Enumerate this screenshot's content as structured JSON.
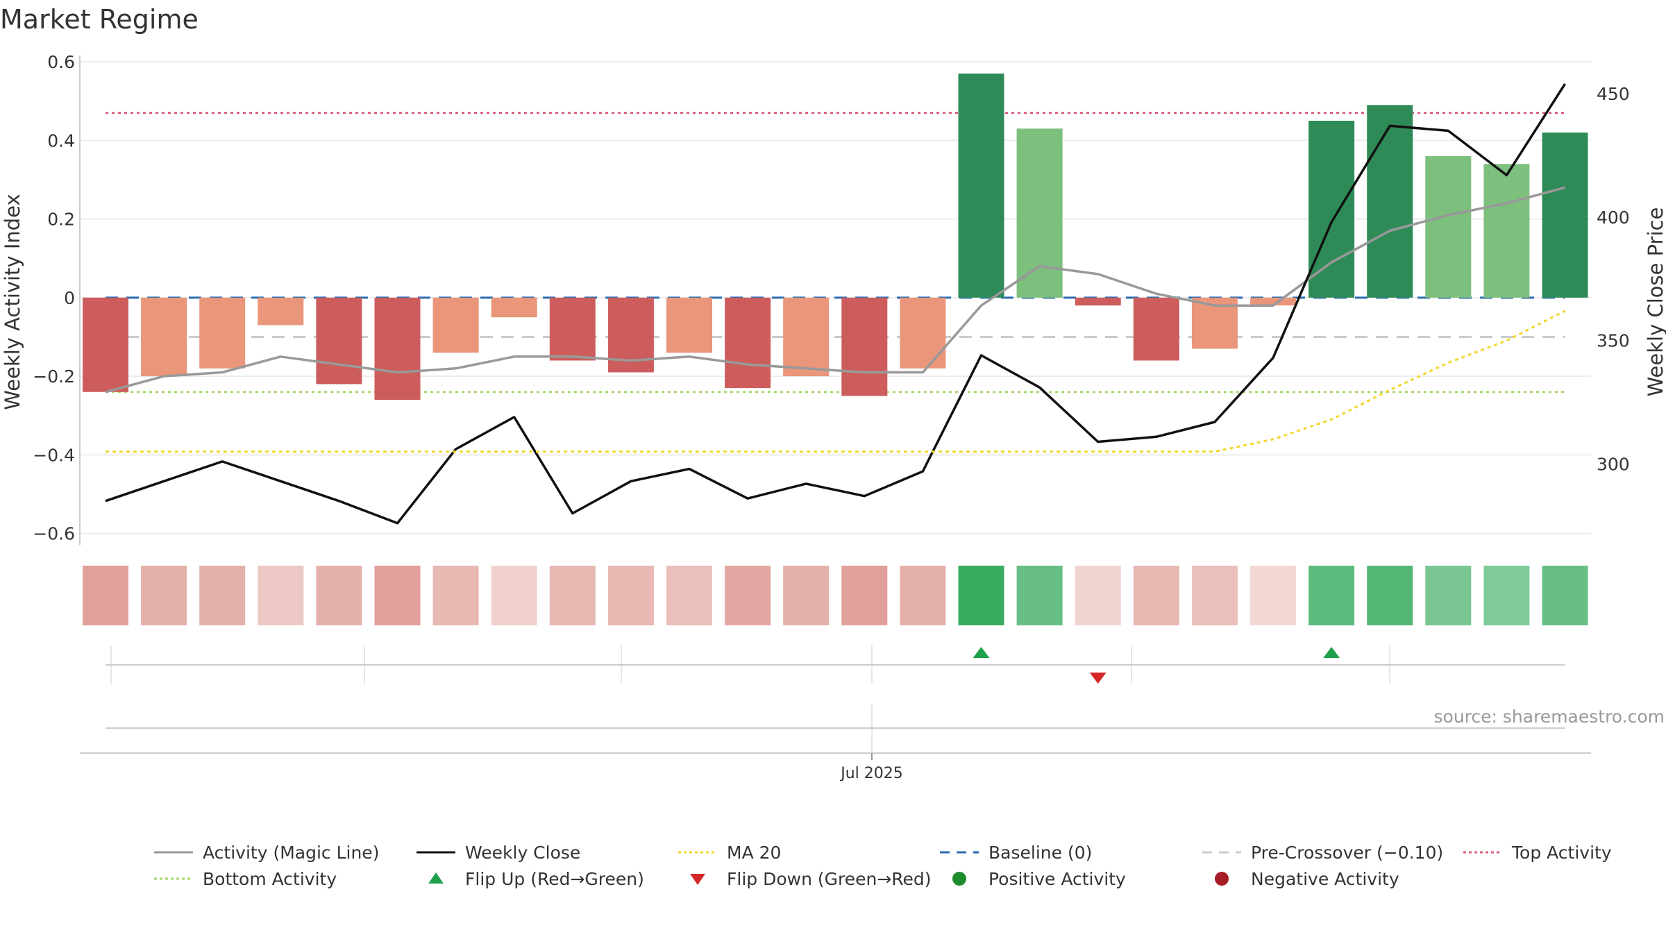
{
  "title": "Market Regime",
  "source_text": "source: sharemaestro.com",
  "colors": {
    "dark_red": "#CD5C5C",
    "light_red": "#E9967A",
    "dark_green": "#2E8B57",
    "light_green": "#7DBF7D",
    "magic_line": "#999999",
    "weekly_close": "#111111",
    "ma20": "#F2D62C",
    "baseline": "#2B6CB0",
    "pre_crossover": "#CCCCCC",
    "top_activity": "#D9607A",
    "bottom_activity": "#A6D96A",
    "flip_up": "#1FA04B",
    "flip_down": "#D62728"
  },
  "chart_data": {
    "type": "bar",
    "xlabel": "",
    "ylabel": "Weekly Activity Index",
    "y2label": "Weekly Close Price",
    "ylim": [
      -0.62,
      0.6
    ],
    "y2lim": [
      263,
      465
    ],
    "yticks": [
      "0.6",
      "0.4",
      "0.2",
      "0",
      "−0.2",
      "−0.4",
      "−0.6"
    ],
    "y2ticks": [
      "450",
      "400",
      "350",
      "300"
    ],
    "date_tick_label": "Jul 2025",
    "grid": true,
    "legend_placement": "bottom",
    "weeks": 26,
    "activity_index": [
      -0.24,
      -0.2,
      -0.18,
      -0.07,
      -0.22,
      -0.26,
      -0.14,
      -0.05,
      -0.16,
      -0.19,
      -0.14,
      -0.23,
      -0.2,
      -0.25,
      -0.18,
      0.57,
      0.43,
      -0.02,
      -0.16,
      -0.13,
      -0.02,
      0.45,
      0.49,
      0.36,
      0.34,
      0.42
    ],
    "bar_shade": [
      "dark",
      "light",
      "light",
      "light",
      "dark",
      "dark",
      "light",
      "light",
      "dark",
      "dark",
      "light",
      "dark",
      "light",
      "dark",
      "light",
      "dark",
      "light",
      "dark",
      "dark",
      "light",
      "light",
      "dark",
      "dark",
      "light",
      "light",
      "dark"
    ],
    "heat_strip": [
      -0.45,
      -0.35,
      -0.35,
      -0.2,
      -0.35,
      -0.45,
      -0.3,
      -0.15,
      -0.3,
      -0.3,
      -0.25,
      -0.4,
      -0.35,
      -0.45,
      -0.35,
      0.95,
      0.7,
      -0.12,
      -0.3,
      -0.25,
      -0.1,
      0.75,
      0.8,
      0.6,
      0.55,
      0.7
    ],
    "series": [
      {
        "name": "Activity (Magic Line)",
        "axis": "left",
        "style": "line",
        "values": [
          -0.24,
          -0.2,
          -0.19,
          -0.15,
          -0.17,
          -0.19,
          -0.18,
          -0.15,
          -0.15,
          -0.16,
          -0.15,
          -0.17,
          -0.18,
          -0.19,
          -0.19,
          -0.02,
          0.08,
          0.06,
          0.01,
          -0.02,
          -0.02,
          0.09,
          0.17,
          0.21,
          0.24,
          0.28
        ]
      },
      {
        "name": "Weekly Close",
        "axis": "right",
        "style": "line",
        "values": [
          285,
          293,
          301,
          293,
          285,
          276,
          306,
          319,
          280,
          293,
          298,
          286,
          292,
          287,
          297,
          344,
          331,
          309,
          311,
          317,
          343,
          398,
          437,
          435,
          417,
          454
        ]
      },
      {
        "name": "MA 20",
        "axis": "right",
        "style": "dotted",
        "values": [
          305,
          305,
          305,
          305,
          305,
          305,
          305,
          305,
          305,
          305,
          305,
          305,
          305,
          305,
          305,
          305,
          305,
          305,
          305,
          305,
          310,
          318,
          330,
          341,
          350,
          362
        ]
      },
      {
        "name": "Baseline (0)",
        "axis": "left",
        "style": "hline",
        "value": 0
      },
      {
        "name": "Pre-Crossover (−0.10)",
        "axis": "left",
        "style": "hline",
        "value": -0.1
      },
      {
        "name": "Top Activity",
        "axis": "left",
        "style": "hline",
        "value": 0.47
      },
      {
        "name": "Bottom Activity",
        "axis": "left",
        "style": "hline",
        "value": -0.24
      }
    ],
    "flip_up_weeks": [
      15,
      21
    ],
    "flip_down_weeks": [
      17
    ]
  },
  "legend": {
    "magic_line": "Activity (Magic Line)",
    "weekly_close": "Weekly Close",
    "ma20": "MA 20",
    "baseline": "Baseline (0)",
    "pre_crossover": "Pre-Crossover (−0.10)",
    "top_activity": "Top Activity",
    "bottom_activity": "Bottom Activity",
    "flip_up": "Flip Up (Red→Green)",
    "flip_down": "Flip Down (Green→Red)",
    "positive_activity": "Positive Activity",
    "negative_activity": "Negative Activity"
  }
}
